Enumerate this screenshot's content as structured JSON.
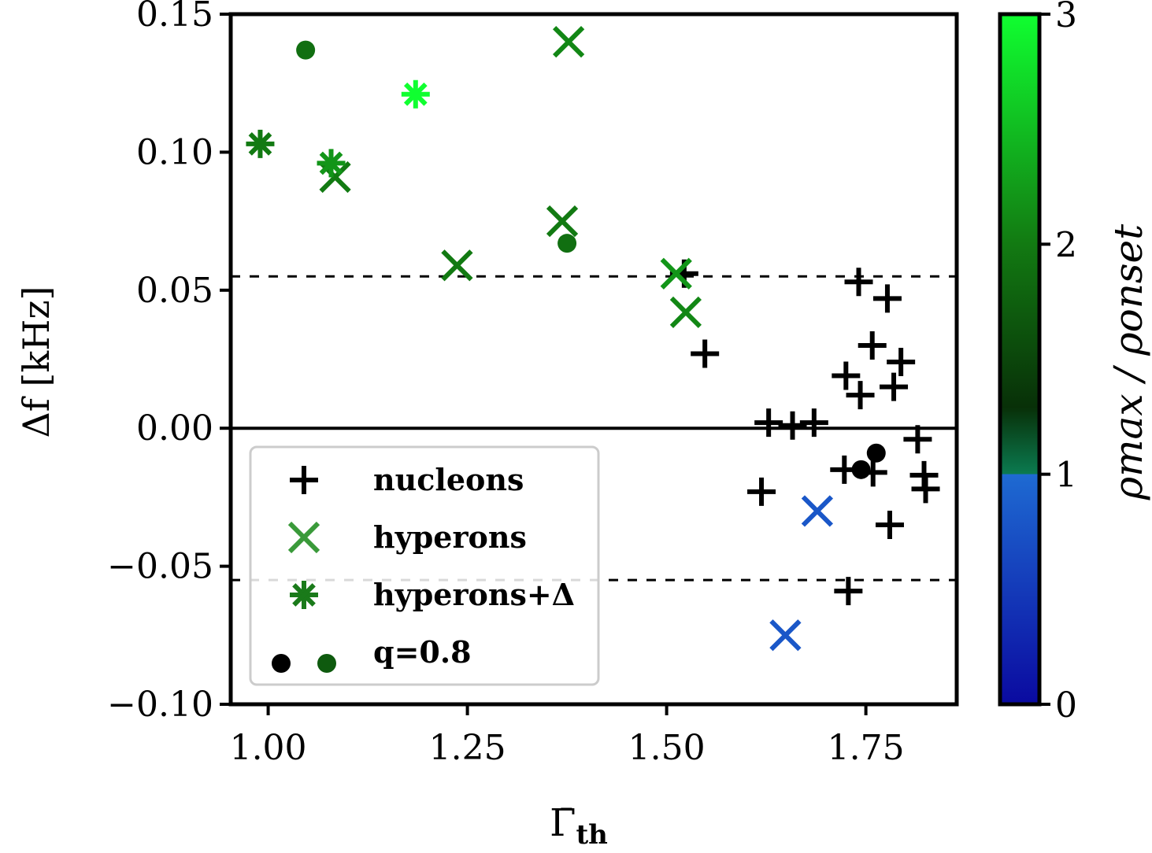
{
  "chart_data": {
    "type": "scatter",
    "xlabel": "Γ̄_th",
    "xlabel_main": "Γ̄",
    "xlabel_sub": "th",
    "ylabel": "Δf [kHz]",
    "xlim": [
      0.953,
      1.864
    ],
    "ylim": [
      -0.1,
      0.15
    ],
    "xticks": [
      1.0,
      1.25,
      1.5,
      1.75
    ],
    "xtick_labels": [
      "1.00",
      "1.25",
      "1.50",
      "1.75"
    ],
    "yticks": [
      0.15,
      0.1,
      0.05,
      0.0,
      -0.05,
      -0.1
    ],
    "ytick_labels": [
      "0.15",
      "0.10",
      "0.05",
      "0.00",
      "−0.05",
      "−0.10"
    ],
    "hlines": [
      {
        "y": 0.0,
        "style": "solid"
      },
      {
        "y": 0.055,
        "style": "dashed"
      },
      {
        "y": -0.055,
        "style": "dashed"
      }
    ],
    "colorbar": {
      "label": "ρmax / ρonset",
      "range": [
        0,
        3
      ],
      "ticks": [
        0,
        1,
        2,
        3
      ],
      "tick_labels": [
        "0",
        "1",
        "2",
        "3"
      ]
    },
    "legend": {
      "placement": "lower-left",
      "entries": [
        {
          "label": "nucleons",
          "marker": "plus",
          "color": "#000000"
        },
        {
          "label": "hyperons",
          "marker": "x",
          "color": "#3a9a3a"
        },
        {
          "label": "hyperons+Δ",
          "marker": "asterisk",
          "color": "#1a7a1a"
        },
        {
          "label": "q=0.8",
          "marker": "dot",
          "color": "#000000",
          "color2": "#0e5a0e"
        }
      ]
    },
    "series": [
      {
        "name": "nucleons",
        "marker": "plus",
        "points": [
          [
            1.741,
            0.053
          ],
          [
            1.777,
            0.047
          ],
          [
            1.758,
            0.03
          ],
          [
            1.794,
            0.024
          ],
          [
            1.725,
            0.019
          ],
          [
            1.743,
            0.012
          ],
          [
            1.785,
            0.015
          ],
          [
            1.628,
            0.002
          ],
          [
            1.658,
            0.001
          ],
          [
            1.685,
            0.002
          ],
          [
            1.815,
            -0.004
          ],
          [
            1.723,
            -0.015
          ],
          [
            1.759,
            -0.016
          ],
          [
            1.823,
            -0.017
          ],
          [
            1.825,
            -0.022
          ],
          [
            1.619,
            -0.023
          ],
          [
            1.78,
            -0.035
          ],
          [
            1.728,
            -0.059
          ],
          [
            1.522,
            0.056
          ],
          [
            1.548,
            0.027
          ]
        ]
      },
      {
        "name": "hyperons",
        "marker": "x",
        "points": [
          [
            1.377,
            0.14,
            2.1
          ],
          [
            1.084,
            0.091,
            2.0
          ],
          [
            1.237,
            0.059,
            2.0
          ],
          [
            1.369,
            0.075,
            2.0
          ],
          [
            1.512,
            0.056,
            2.2
          ],
          [
            1.524,
            0.042,
            2.1
          ],
          [
            1.689,
            -0.03,
            0.8
          ],
          [
            1.649,
            -0.075,
            0.8
          ]
        ]
      },
      {
        "name": "hyperons+Δ",
        "marker": "asterisk",
        "points": [
          [
            0.99,
            0.103,
            2.0
          ],
          [
            1.079,
            0.096,
            2.2
          ],
          [
            1.185,
            0.121,
            3.0
          ]
        ]
      },
      {
        "name": "q=0.8",
        "marker": "dot",
        "points": [
          [
            1.047,
            0.137,
            1.9
          ],
          [
            1.375,
            0.067,
            1.9
          ],
          [
            1.763,
            -0.009,
            null
          ],
          [
            1.744,
            -0.015,
            null
          ]
        ]
      }
    ]
  }
}
